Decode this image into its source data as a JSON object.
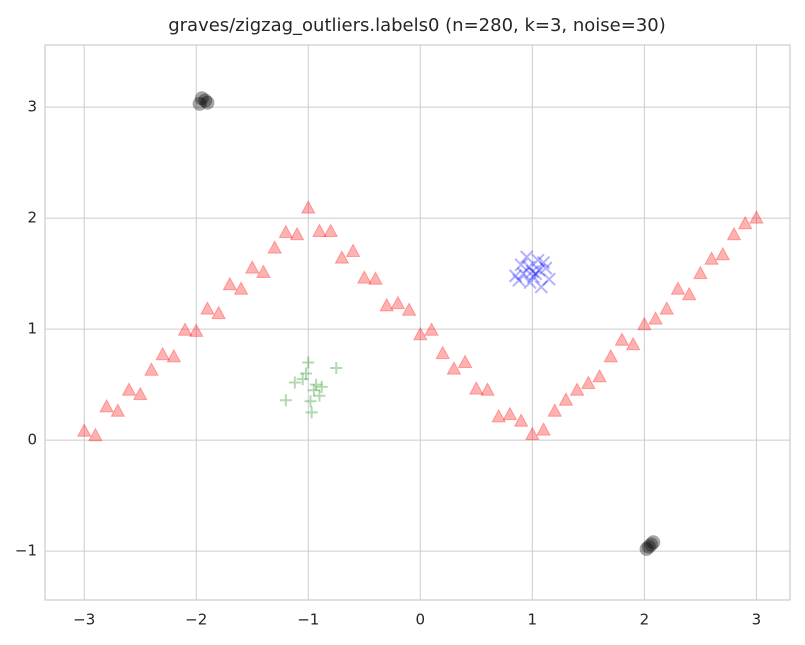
{
  "chart_data": {
    "type": "scatter",
    "title": "graves/zigzag_outliers.labels0 (n=280, k=3, noise=30)",
    "xlim": [
      -3.35,
      3.3
    ],
    "ylim": [
      -1.44,
      3.56
    ],
    "xticks": [
      {
        "value": -3,
        "label": "−3"
      },
      {
        "value": -2,
        "label": "−2"
      },
      {
        "value": -1,
        "label": "−1"
      },
      0,
      1,
      2,
      3
    ],
    "yticks": [
      {
        "value": -1,
        "label": "−1"
      },
      0,
      1,
      2,
      3
    ],
    "grid": true,
    "series": [
      {
        "marker": "triangle",
        "color": "#ff0000",
        "x": [
          -3,
          -2.9,
          -2.8,
          -2.7,
          -2.6,
          -2.5,
          -2.4,
          -2.3,
          -2.2,
          -2.1,
          -2,
          -1.9,
          -1.8,
          -1.7,
          -1.6,
          -1.5,
          -1.4,
          -1.3,
          -1.2,
          -1.1,
          -1,
          -0.9,
          -0.8,
          -0.7,
          -0.6,
          -0.5,
          -0.4,
          -0.3,
          -0.2,
          -0.1,
          0,
          0.1,
          0.2,
          0.3,
          0.4,
          0.5,
          0.6,
          0.7,
          0.8,
          0.9,
          1,
          1.1,
          1.2,
          1.3,
          1.4,
          1.5,
          1.6,
          1.7,
          1.8,
          1.9,
          2,
          2.1,
          2.2,
          2.3,
          2.4,
          2.5,
          2.6,
          2.7,
          2.8,
          2.9,
          3
        ],
        "y": [
          0.08,
          0.04,
          0.3,
          0.26,
          0.45,
          0.41,
          0.63,
          0.77,
          0.75,
          0.99,
          0.98,
          1.18,
          1.14,
          1.4,
          1.36,
          1.55,
          1.51,
          1.73,
          1.87,
          1.85,
          2.09,
          1.88,
          1.88,
          1.64,
          1.7,
          1.46,
          1.45,
          1.21,
          1.23,
          1.17,
          0.95,
          0.99,
          0.78,
          0.64,
          0.7,
          0.46,
          0.45,
          0.21,
          0.23,
          0.17,
          0.05,
          0.09,
          0.26,
          0.36,
          0.45,
          0.51,
          0.57,
          0.75,
          0.9,
          0.86,
          1.04,
          1.09,
          1.18,
          1.36,
          1.31,
          1.5,
          1.63,
          1.67,
          1.85,
          1.95,
          2.0
        ]
      },
      {
        "marker": "x",
        "color": "#0000ff",
        "x": [
          0.92,
          1.05,
          0.98,
          1.12,
          0.85,
          1.0,
          1.08,
          0.95,
          1.15,
          0.9,
          1.03,
          0.97,
          1.1,
          0.88,
          1.01,
          1.06
        ],
        "y": [
          1.5,
          1.62,
          1.42,
          1.55,
          1.48,
          1.52,
          1.38,
          1.65,
          1.45,
          1.58,
          1.5,
          1.56,
          1.6,
          1.44,
          1.47,
          1.53
        ]
      },
      {
        "marker": "plus",
        "color": "#008000",
        "x": [
          -1.05,
          -0.95,
          -1.0,
          -0.9,
          -1.12,
          -0.98,
          -0.88,
          -1.02,
          -0.75,
          -1.2,
          -0.97,
          -0.93
        ],
        "y": [
          0.55,
          0.45,
          0.7,
          0.4,
          0.52,
          0.35,
          0.48,
          0.6,
          0.65,
          0.36,
          0.25,
          0.5
        ]
      },
      {
        "marker": "circle",
        "color": "#000000",
        "x": [
          -1.97,
          -1.92,
          -1.95,
          -1.9,
          2.02,
          2.06,
          2.08,
          2.04
        ],
        "y": [
          3.03,
          3.06,
          3.08,
          3.04,
          -0.98,
          -0.94,
          -0.92,
          -0.96
        ]
      }
    ]
  }
}
